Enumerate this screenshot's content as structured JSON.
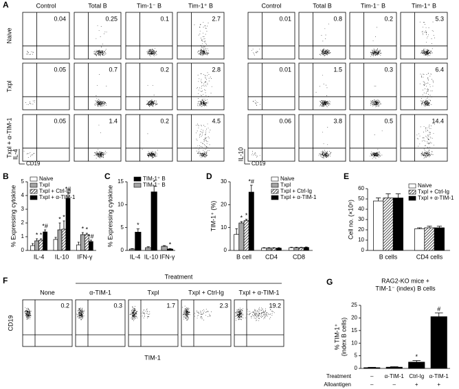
{
  "flow_a": {
    "panel": "A",
    "row_labels": [
      "Naive",
      "Txpl",
      "Txpl + α-TIM-1"
    ],
    "blocks": [
      {
        "columns": [
          "Control",
          "Total B",
          "Tim-1⁻ B",
          "Tim-1⁺ B"
        ],
        "values": [
          [
            0.04,
            0.25,
            0.1,
            2.7
          ],
          [
            0.05,
            0.7,
            0.2,
            2.8
          ],
          [
            0.05,
            1.4,
            0.2,
            4.5
          ]
        ],
        "y_label": "IL-4",
        "x_label": "CD19"
      },
      {
        "columns": [
          "Control",
          "Total B",
          "Tim-1⁻ B",
          "Tim-1⁺ B"
        ],
        "values": [
          [
            0.01,
            0.8,
            0.2,
            5.3
          ],
          [
            0.01,
            1.5,
            0.3,
            6.4
          ],
          [
            0.06,
            3.8,
            0.5,
            14.4
          ]
        ],
        "y_label": "IL-10",
        "x_label": "CD19"
      }
    ]
  },
  "flow_f": {
    "panel": "F",
    "header": "Treatment",
    "columns": [
      "None",
      "α-TIM-1",
      "Txpl",
      "Txpl + Ctrl-Ig",
      "Txpl + α-TIM-1"
    ],
    "values": [
      0.2,
      0.3,
      1.7,
      2.3,
      19.2
    ],
    "y_label": "CD19",
    "x_label": "TIM-1"
  },
  "chart_data": [
    {
      "type": "bar",
      "panel": "B",
      "ylabel": "% Expressing cytokine",
      "categories": [
        "IL-4",
        "IL-10",
        "IFN-γ"
      ],
      "ylim": [
        0,
        5
      ],
      "yticks": [
        0,
        1,
        2,
        3,
        4,
        5
      ],
      "legend": "upper-left",
      "series": [
        {
          "name": "Naive",
          "color": "#ffffff",
          "values": [
            0.35,
            0.8,
            0.4
          ],
          "errors": [
            0.15,
            0.15,
            0.2
          ]
        },
        {
          "name": "Txpl",
          "color": "#a6a6a6",
          "values": [
            0.7,
            1.5,
            1.15
          ],
          "errors": [
            0.15,
            0.5,
            0.15
          ],
          "labels": [
            "*",
            "*",
            "*"
          ]
        },
        {
          "name": "Txpl + Ctrl-Ig",
          "color": "hatch",
          "values": [
            0.75,
            1.55,
            1.15
          ],
          "errors": [
            0.1,
            0.6,
            0.1
          ],
          "labels": [
            "*",
            "*",
            "*"
          ]
        },
        {
          "name": "Txpl + α-TIM-1",
          "color": "#000000",
          "values": [
            1.35,
            3.8,
            0.65
          ],
          "errors": [
            0.15,
            0.4,
            0.1
          ],
          "labels": [
            "*#",
            "*#",
            "*#"
          ]
        }
      ]
    },
    {
      "type": "bar",
      "panel": "C",
      "ylabel": "% Expressing cytokine",
      "categories": [
        "IL-4",
        "IL-10",
        "IFN-γ"
      ],
      "ylim": [
        0,
        15
      ],
      "yticks": [
        0,
        5,
        10,
        15
      ],
      "legend": "upper-right",
      "series": [
        {
          "name": "TIM-1⁺ B",
          "color": "#000000",
          "values": [
            4,
            12.8,
            0.3
          ],
          "errors": [
            0.7,
            1.3,
            0.1
          ],
          "labels": [
            "*",
            "*",
            "*"
          ]
        },
        {
          "name": "TIM-1⁻ B",
          "color": "#a6a6a6",
          "values": [
            0.3,
            0.6,
            0.9
          ],
          "errors": [
            0.1,
            0.2,
            0.15
          ]
        }
      ]
    },
    {
      "type": "bar",
      "panel": "D",
      "ylabel": "TIM-1⁺ (%)",
      "categories": [
        "B cell",
        "CD4",
        "CD8"
      ],
      "ylim": [
        0,
        30
      ],
      "yticks": [
        0,
        10,
        20,
        30
      ],
      "legend": "upper-right",
      "series": [
        {
          "name": "Naive",
          "color": "#ffffff",
          "values": [
            7,
            1,
            1.2
          ],
          "errors": [
            2.5,
            0.2,
            0.2
          ]
        },
        {
          "name": "Txpl",
          "color": "#a6a6a6",
          "values": [
            12,
            1,
            1.2
          ],
          "errors": [
            0.6,
            0.2,
            0.2
          ],
          "labels": [
            "*",
            null,
            null
          ]
        },
        {
          "name": "Txpl + Ctrl-Ig",
          "color": "hatch",
          "values": [
            13,
            1,
            1.2
          ],
          "errors": [
            0.6,
            0.2,
            0.2
          ],
          "labels": [
            "*",
            null,
            null
          ]
        },
        {
          "name": "Txpl + α-TIM-1",
          "color": "#000000",
          "values": [
            25.5,
            1,
            1.3
          ],
          "errors": [
            3,
            0.2,
            0.2
          ],
          "labels": [
            "*#",
            null,
            null
          ]
        }
      ]
    },
    {
      "type": "bar",
      "panel": "E",
      "ylabel": "Cell no. (×10⁶)",
      "categories": [
        "B cells",
        "CD4 cells"
      ],
      "ylim": [
        0,
        60
      ],
      "yticks": [
        0,
        10,
        20,
        30,
        40,
        50,
        60
      ],
      "legend": "upper-right",
      "series": [
        {
          "name": "Naive",
          "color": "#ffffff",
          "values": [
            48,
            21
          ],
          "errors": [
            3,
            1
          ]
        },
        {
          "name": "Txpl + Ctrl-Ig",
          "color": "hatch",
          "values": [
            51,
            22
          ],
          "errors": [
            4,
            1.5
          ]
        },
        {
          "name": "Txpl + α-TIM-1",
          "color": "#000000",
          "values": [
            51,
            22
          ],
          "errors": [
            4,
            1.5
          ]
        }
      ]
    },
    {
      "type": "bar",
      "panel": "G",
      "title": [
        "RAG2-KO mice +",
        "TIM-1⁻ (index) B cells"
      ],
      "ylabel": [
        "% TIM-1⁺",
        "(index B cells)"
      ],
      "ylim": [
        0,
        25
      ],
      "yticks": [
        0,
        5,
        10,
        15,
        20,
        25
      ],
      "category_rows": [
        {
          "label": "Treatment",
          "values": [
            "–",
            "α-TIM-1",
            "Ctrl-Ig",
            "α-TIM-1"
          ]
        },
        {
          "label": "Alloantigen",
          "values": [
            "–",
            "–",
            "+",
            "+"
          ]
        }
      ],
      "series": [
        {
          "color": "#000000",
          "values": [
            0.3,
            0.5,
            2.5,
            20.5
          ],
          "errors": [
            0.15,
            0.2,
            0.6,
            1.5
          ],
          "labels": [
            null,
            null,
            "*",
            "#"
          ]
        }
      ]
    }
  ]
}
